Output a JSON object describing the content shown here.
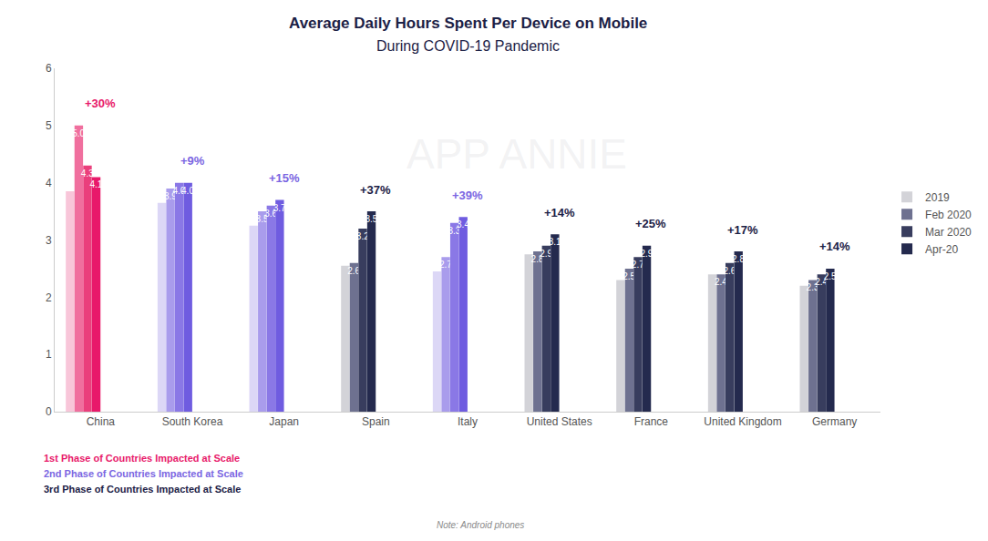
{
  "chart_data": {
    "type": "bar",
    "title": "Average Daily Hours Spent Per Device on Mobile",
    "subtitle": "During COVID-19 Pandemic",
    "watermark": "APP ANNIE",
    "categories": [
      "China",
      "South Korea",
      "Japan",
      "Spain",
      "Italy",
      "United States",
      "France",
      "United Kingdom",
      "Germany"
    ],
    "series": [
      {
        "name": "2019",
        "color": "#d3d3d8",
        "data_labels": false,
        "colors": [
          "#f8c6d9",
          "#dcd7f6",
          "#dcd7f6",
          "#d3d3d8",
          "#dcd7f6",
          "#d3d3d8",
          "#d3d3d8",
          "#d3d3d8",
          "#d3d3d8"
        ],
        "values": [
          3.85,
          3.65,
          3.25,
          2.55,
          2.45,
          2.75,
          2.3,
          2.4,
          2.2
        ]
      },
      {
        "name": "Feb 2020",
        "color": "#6e7190",
        "data_labels": true,
        "colors": [
          "#f06f9e",
          "#a99cec",
          "#a99cec",
          "#6e7190",
          "#a99cec",
          "#6e7190",
          "#6e7190",
          "#6e7190",
          "#6e7190"
        ],
        "values": [
          5.0,
          3.9,
          3.5,
          2.6,
          2.7,
          2.8,
          2.5,
          2.4,
          2.3
        ],
        "value_labels": [
          "5.0",
          "3.9",
          "3.5",
          "2.6",
          "2.7",
          "2.8",
          "2.5",
          "2.4",
          "2.3"
        ]
      },
      {
        "name": "Mar 2020",
        "color": "#383d5e",
        "data_labels": true,
        "colors": [
          "#ea3f7c",
          "#8a78e6",
          "#8a78e6",
          "#383d5e",
          "#8a78e6",
          "#383d5e",
          "#383d5e",
          "#383d5e",
          "#383d5e"
        ],
        "values": [
          4.3,
          4.0,
          3.6,
          3.2,
          3.3,
          2.9,
          2.7,
          2.6,
          2.4
        ],
        "value_labels": [
          "4.3",
          "4.0",
          "3.6",
          "3.2",
          "3.3",
          "2.9",
          "2.7",
          "2.6",
          "2.4"
        ]
      },
      {
        "name": "Apr-20",
        "color": "#242a4e",
        "data_labels": true,
        "colors": [
          "#e8196a",
          "#6f5ce0",
          "#6f5ce0",
          "#242a4e",
          "#6f5ce0",
          "#242a4e",
          "#242a4e",
          "#242a4e",
          "#242a4e"
        ],
        "values": [
          4.1,
          4.0,
          3.7,
          3.5,
          3.4,
          3.1,
          2.9,
          2.8,
          2.5
        ],
        "value_labels": [
          "4.1",
          "4.0",
          "3.7",
          "3.5",
          "3.4",
          "3.1",
          "2.9",
          "2.8",
          "2.5"
        ]
      }
    ],
    "annotations": [
      {
        "category": "China",
        "text": "+30%",
        "color": "#e8196a"
      },
      {
        "category": "South Korea",
        "text": "+9%",
        "color": "#7b66e2"
      },
      {
        "category": "Japan",
        "text": "+15%",
        "color": "#7b66e2"
      },
      {
        "category": "Spain",
        "text": "+37%",
        "color": "#1c2146"
      },
      {
        "category": "Italy",
        "text": "+39%",
        "color": "#7b66e2"
      },
      {
        "category": "United States",
        "text": "+14%",
        "color": "#1c2146"
      },
      {
        "category": "France",
        "text": "+25%",
        "color": "#1c2146"
      },
      {
        "category": "United Kingdom",
        "text": "+17%",
        "color": "#1c2146"
      },
      {
        "category": "Germany",
        "text": "+14%",
        "color": "#1c2146"
      }
    ],
    "notes": [
      {
        "text": "1st Phase of Countries Impacted at Scale",
        "color": "#e8196a"
      },
      {
        "text": "2nd Phase of Countries Impacted at Scale",
        "color": "#7b66e2"
      },
      {
        "text": "3rd Phase of Countries Impacted at Scale",
        "color": "#1c2146"
      }
    ],
    "footnote": "Note: Android phones",
    "ylim": [
      0,
      6
    ],
    "yticks": [
      0,
      1,
      2,
      3,
      4,
      5,
      6
    ],
    "grid": false,
    "legend": "right"
  }
}
